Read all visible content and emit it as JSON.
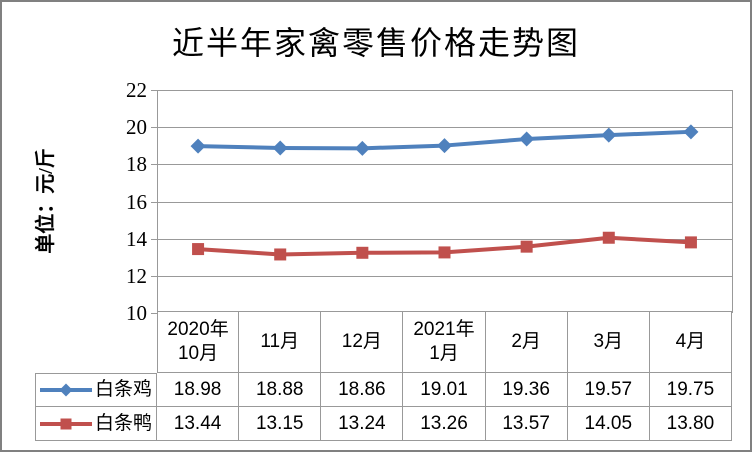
{
  "title": "近半年家禽零售价格走势图",
  "y_axis_title": "单位：元/斤",
  "colors": {
    "series_blue": "#4F81BD",
    "series_red": "#C0504D",
    "gridline": "#999999",
    "axis": "#999999",
    "table_border": "#999999",
    "outer_border": "#808080",
    "background": "#ffffff",
    "text": "#000000"
  },
  "chart_data": {
    "type": "line",
    "title": "近半年家禽零售价格走势图",
    "xlabel": "",
    "ylabel": "单位：元/斤",
    "ylim": [
      10,
      22
    ],
    "y_ticks": [
      22,
      20,
      18,
      16,
      14,
      12,
      10
    ],
    "grid": true,
    "legend_position": "in-table-left",
    "categories": [
      "2020年10月",
      "11月",
      "12月",
      "2021年1月",
      "2月",
      "3月",
      "4月"
    ],
    "categories_display": [
      "2020年\n10月",
      "11月",
      "12月",
      "2021年\n1月",
      "2月",
      "3月",
      "4月"
    ],
    "series": [
      {
        "name": "白条鸡",
        "color": "#4F81BD",
        "marker": "diamond",
        "values": [
          18.98,
          18.88,
          18.86,
          19.01,
          19.36,
          19.57,
          19.75
        ],
        "display": [
          "18.98",
          "18.88",
          "18.86",
          "19.01",
          "19.36",
          "19.57",
          "19.75"
        ]
      },
      {
        "name": "白条鸭",
        "color": "#C0504D",
        "marker": "square",
        "values": [
          13.44,
          13.15,
          13.24,
          13.26,
          13.57,
          14.05,
          13.8
        ],
        "display": [
          "13.44",
          "13.15",
          "13.24",
          "13.26",
          "13.57",
          "14.05",
          "13.80"
        ]
      }
    ]
  }
}
